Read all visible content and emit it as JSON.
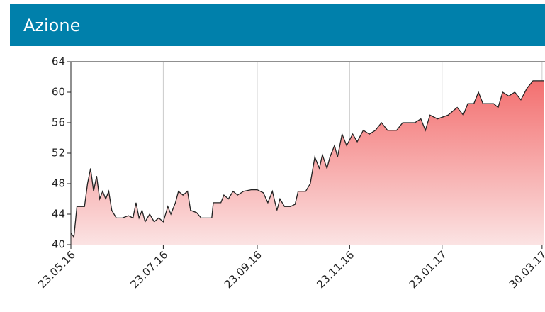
{
  "header": {
    "title": "Azione"
  },
  "chart_data": {
    "type": "area",
    "x": [
      "2016-05-23",
      "2016-05-25",
      "2016-05-27",
      "2016-06-01",
      "2016-06-03",
      "2016-06-05",
      "2016-06-07",
      "2016-06-09",
      "2016-06-11",
      "2016-06-13",
      "2016-06-15",
      "2016-06-17",
      "2016-06-19",
      "2016-06-22",
      "2016-06-26",
      "2016-06-30",
      "2016-07-03",
      "2016-07-05",
      "2016-07-07",
      "2016-07-09",
      "2016-07-11",
      "2016-07-14",
      "2016-07-17",
      "2016-07-20",
      "2016-07-23",
      "2016-07-26",
      "2016-07-28",
      "2016-07-31",
      "2016-08-02",
      "2016-08-05",
      "2016-08-08",
      "2016-08-10",
      "2016-08-14",
      "2016-08-17",
      "2016-08-24",
      "2016-08-25",
      "2016-08-30",
      "2016-09-01",
      "2016-09-04",
      "2016-09-07",
      "2016-09-10",
      "2016-09-14",
      "2016-09-19",
      "2016-09-23",
      "2016-09-27",
      "2016-09-30",
      "2016-10-03",
      "2016-10-06",
      "2016-10-08",
      "2016-10-11",
      "2016-10-15",
      "2016-10-18",
      "2016-10-20",
      "2016-10-25",
      "2016-10-28",
      "2016-10-31",
      "2016-11-03",
      "2016-11-05",
      "2016-11-08",
      "2016-11-10",
      "2016-11-13",
      "2016-11-15",
      "2016-11-18",
      "2016-11-21",
      "2016-11-25",
      "2016-11-28",
      "2016-12-02",
      "2016-12-06",
      "2016-12-10",
      "2016-12-14",
      "2016-12-18",
      "2016-12-24",
      "2016-12-28",
      "2017-01-05",
      "2017-01-09",
      "2017-01-12",
      "2017-01-15",
      "2017-01-20",
      "2017-01-27",
      "2017-02-02",
      "2017-02-06",
      "2017-02-09",
      "2017-02-13",
      "2017-02-16",
      "2017-02-19",
      "2017-02-26",
      "2017-03-01",
      "2017-03-04",
      "2017-03-08",
      "2017-03-12",
      "2017-03-16",
      "2017-03-20",
      "2017-03-24",
      "2017-03-31"
    ],
    "values": [
      41.5,
      41,
      45,
      45,
      48,
      50,
      47,
      49,
      46,
      47,
      46,
      47,
      44.5,
      43.5,
      43.5,
      43.8,
      43.5,
      45.5,
      43.5,
      44.5,
      43,
      44,
      43,
      43.5,
      43,
      45,
      44,
      45.5,
      47,
      46.5,
      47,
      44.5,
      44.2,
      43.5,
      43.5,
      45.5,
      45.5,
      46.5,
      46,
      47,
      46.5,
      47,
      47.2,
      47.2,
      46.8,
      45.5,
      47,
      44.5,
      46,
      45,
      45,
      45.3,
      47,
      47,
      48,
      51.5,
      50,
      51.8,
      50,
      51.5,
      53,
      51.5,
      54.5,
      53,
      54.5,
      53.5,
      55,
      54.5,
      55,
      56,
      55,
      55,
      56,
      56,
      56.5,
      55,
      57,
      56.5,
      57,
      58,
      57,
      58.5,
      58.5,
      60,
      58.5,
      58.5,
      58,
      60,
      59.5,
      60,
      59,
      60.5,
      61.5,
      61.5
    ],
    "color": "#222222",
    "xlim": [
      "2016-05-23",
      "2017-03-31"
    ],
    "xticks": [
      {
        "value": "2016-05-23",
        "label": "23.05.16"
      },
      {
        "value": "2016-07-23",
        "label": "23.07.16"
      },
      {
        "value": "2016-09-23",
        "label": "23.09.16"
      },
      {
        "value": "2016-11-23",
        "label": "23.11.16"
      },
      {
        "value": "2017-01-23",
        "label": "23.01.17"
      },
      {
        "value": "2017-03-30",
        "label": "30.03.17"
      }
    ],
    "ylim": [
      40,
      64
    ],
    "yticks": [
      40,
      44,
      48,
      52,
      56,
      60,
      64
    ],
    "grid": true
  }
}
